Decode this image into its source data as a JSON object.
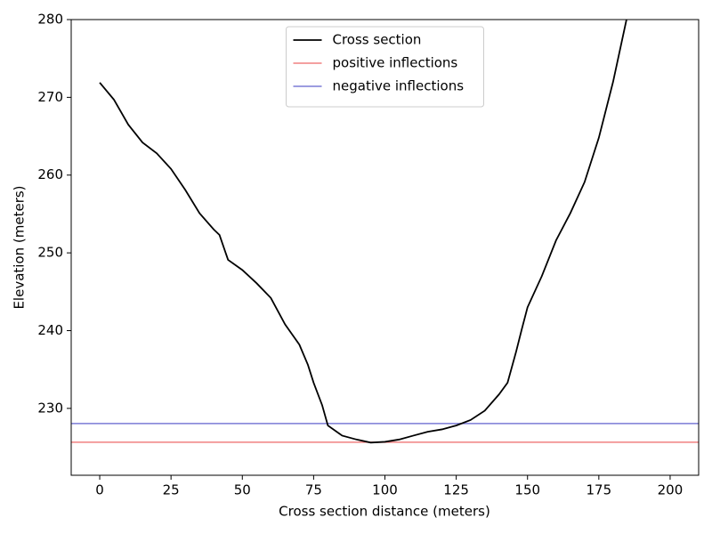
{
  "chart_data": {
    "type": "line",
    "xlabel": "Cross section distance (meters)",
    "ylabel": "Elevation (meters)",
    "x": [
      0,
      5,
      10,
      15,
      20,
      25,
      30,
      35,
      40,
      42,
      45,
      50,
      55,
      60,
      65,
      70,
      73,
      75,
      78,
      80,
      85,
      90,
      95,
      100,
      105,
      110,
      115,
      120,
      125,
      130,
      135,
      140,
      143,
      146,
      148,
      150,
      155,
      160,
      165,
      170,
      175,
      180,
      184.7
    ],
    "series": [
      {
        "name": "Cross section",
        "color": "#000000",
        "values": [
          271.9,
          269.7,
          266.5,
          264.2,
          262.8,
          260.8,
          258.1,
          255.1,
          253,
          252.3,
          249.1,
          247.8,
          246.1,
          244.2,
          240.8,
          238.2,
          235.6,
          233.3,
          230.4,
          227.8,
          226.5,
          226,
          225.6,
          225.7,
          226,
          226.5,
          227,
          227.3,
          227.8,
          228.5,
          229.7,
          231.8,
          233.3,
          237.3,
          240.2,
          243,
          247,
          251.6,
          255.1,
          259.1,
          264.8,
          272,
          280
        ]
      }
    ],
    "hlines": [
      {
        "name": "positive inflections",
        "color": "#f08080",
        "value": 225.65
      },
      {
        "name": "negative inflections",
        "color": "#7b7bd6",
        "value": 228.05
      }
    ],
    "xlim": [
      -10,
      210
    ],
    "ylim": [
      221.4,
      280
    ],
    "xticks": [
      0,
      25,
      50,
      75,
      100,
      125,
      150,
      175,
      200
    ],
    "yticks": [
      230,
      240,
      250,
      260,
      270,
      280
    ],
    "legend": "upper center"
  }
}
